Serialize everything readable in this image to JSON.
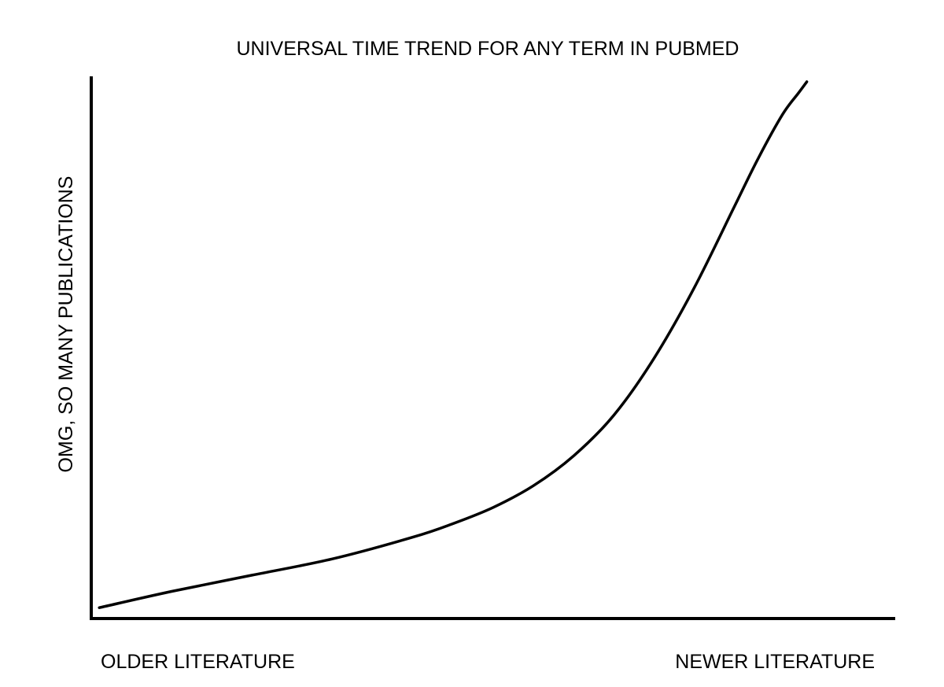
{
  "chart_data": {
    "type": "line",
    "title": "UNIVERSAL TIME TREND FOR ANY TERM IN PUBMED",
    "xlabel": "",
    "ylabel": "OMG, SO MANY PUBLICATIONS",
    "x_tick_labels": {
      "left": "OLDER LITERATURE",
      "right": "NEWER LITERATURE"
    },
    "xlim": [
      0,
      100
    ],
    "ylim": [
      0,
      100
    ],
    "grid": false,
    "legend": "none",
    "line_color": "#000000",
    "series": [
      {
        "x": [
          1,
          10,
          20,
          30,
          40,
          45,
          50,
          55,
          60,
          65,
          70,
          75,
          80,
          83,
          86,
          88,
          89
        ],
        "y": [
          2,
          5,
          8,
          11,
          15,
          17.5,
          20.5,
          24.5,
          30,
          37.5,
          48,
          61,
          76,
          85,
          93,
          97,
          99
        ]
      }
    ]
  },
  "colors": {
    "background": "#ffffff",
    "axis": "#000000",
    "line": "#000000"
  }
}
